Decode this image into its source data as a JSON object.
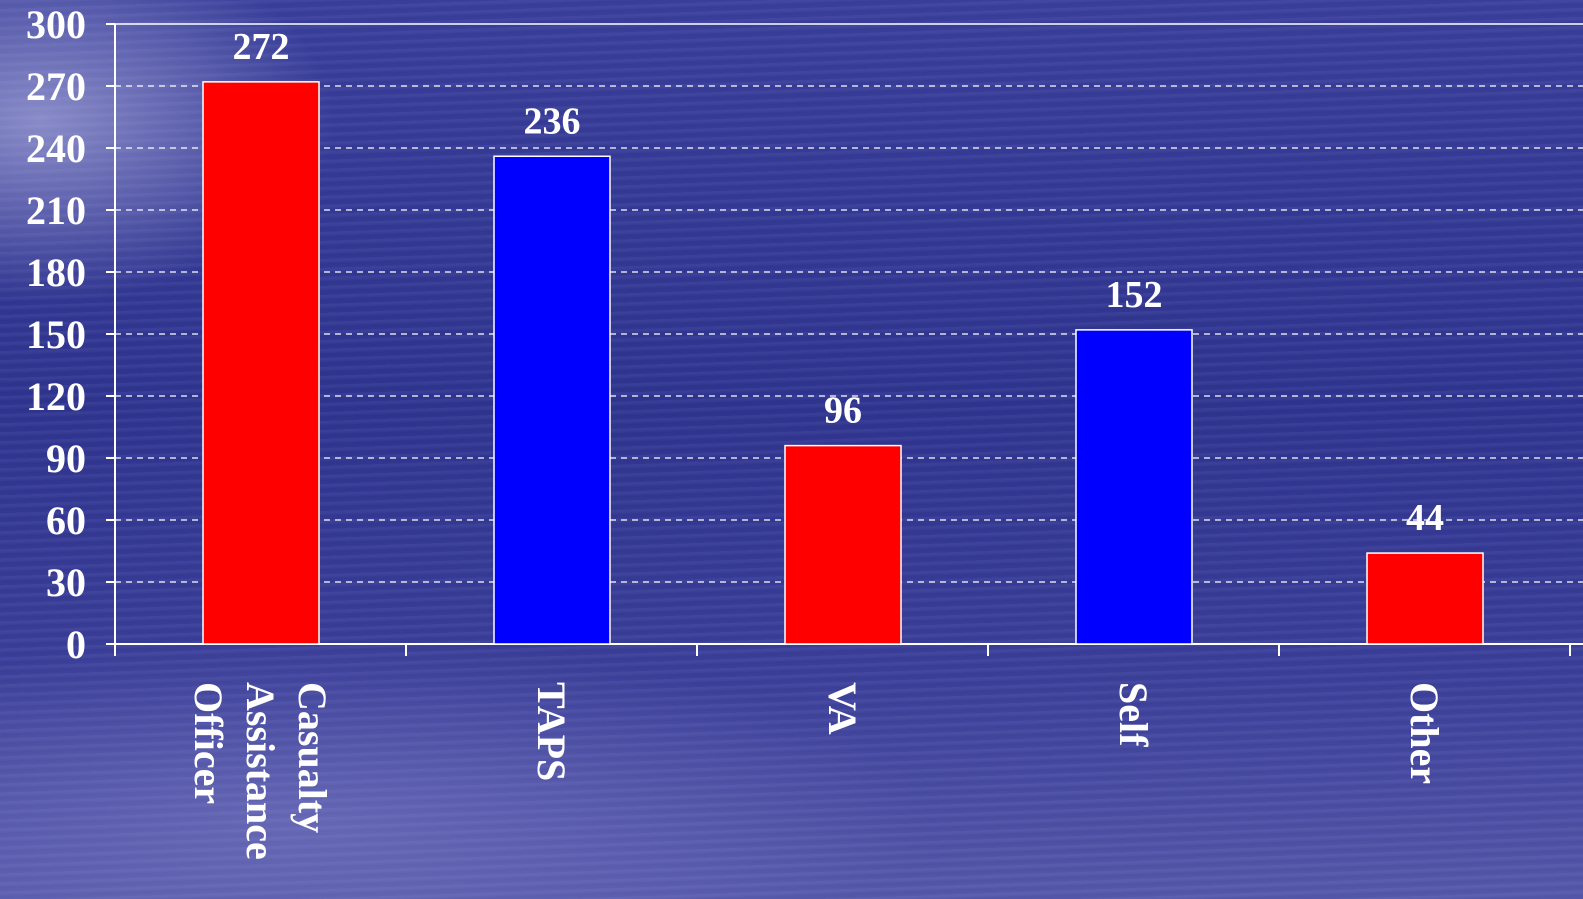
{
  "chart_data": {
    "type": "bar",
    "categories": [
      "Casualty Assistance Officer",
      "TAPS",
      "VA",
      "Self",
      "Other"
    ],
    "category_label_lines": [
      [
        "Casualty",
        "Assistance",
        "Officer"
      ],
      [
        "TAPS"
      ],
      [
        "VA"
      ],
      [
        "Self"
      ],
      [
        "Other"
      ]
    ],
    "values": [
      272,
      236,
      96,
      152,
      44
    ],
    "data_labels": [
      "272",
      "236",
      "96",
      "152",
      "44"
    ],
    "bar_colors": [
      "#ff0000",
      "#0000ff",
      "#ff0000",
      "#0000ff",
      "#ff0000"
    ],
    "ylim": [
      0,
      300
    ],
    "yticks": [
      0,
      30,
      60,
      90,
      120,
      150,
      180,
      210,
      240,
      270,
      300
    ],
    "ytick_labels": [
      "0",
      "30",
      "60",
      "90",
      "120",
      "150",
      "180",
      "210",
      "240",
      "270",
      "300"
    ],
    "grid": true,
    "grid_style": "dashed",
    "title": "",
    "xlabel": "",
    "ylabel": ""
  }
}
